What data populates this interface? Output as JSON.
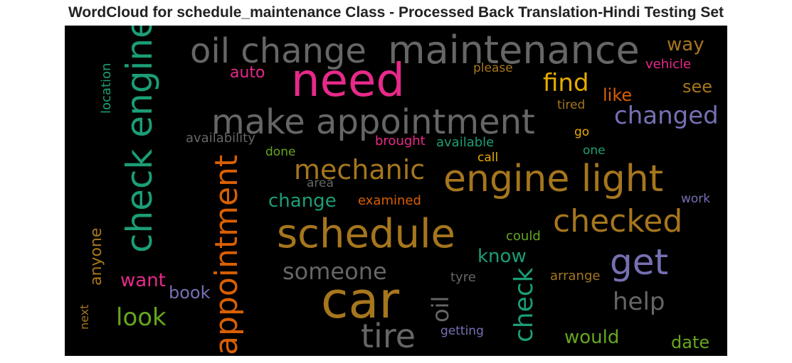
{
  "title": "WordCloud for schedule_maintenance Class - Processed Back Translation-Hindi Testing Set",
  "words": {
    "need": {
      "text": "need",
      "color": "#e7298a"
    },
    "car": {
      "text": "car",
      "color": "#a6761d"
    },
    "schedule": {
      "text": "schedule",
      "color": "#a6761d"
    },
    "engine_light": {
      "text": "engine light",
      "color": "#a6761d"
    },
    "maintenance": {
      "text": "maintenance",
      "color": "#666666"
    },
    "check_engine": {
      "text": "check engine",
      "color": "#1b9e77"
    },
    "make_appointment": {
      "text": "make appointment",
      "color": "#666666"
    },
    "oil_change": {
      "text": "oil change",
      "color": "#666666"
    },
    "appointment": {
      "text": "appointment",
      "color": "#d95f02"
    },
    "get": {
      "text": "get",
      "color": "#7570b3"
    },
    "tire": {
      "text": "tire",
      "color": "#666666"
    },
    "checked": {
      "text": "checked",
      "color": "#a6761d"
    },
    "mechanic": {
      "text": "mechanic",
      "color": "#a6761d"
    },
    "check": {
      "text": "check",
      "color": "#1b9e77"
    },
    "changed": {
      "text": "changed",
      "color": "#7570b3"
    },
    "find": {
      "text": "find",
      "color": "#e6ab02"
    },
    "someone": {
      "text": "someone",
      "color": "#666666"
    },
    "help": {
      "text": "help",
      "color": "#666666"
    },
    "look": {
      "text": "look",
      "color": "#66a61e"
    },
    "oil": {
      "text": "oil",
      "color": "#666666"
    },
    "change": {
      "text": "change",
      "color": "#1b9e77"
    },
    "know": {
      "text": "know",
      "color": "#1b9e77"
    },
    "way": {
      "text": "way",
      "color": "#a6761d"
    },
    "would": {
      "text": "would",
      "color": "#66a61e"
    },
    "want": {
      "text": "want",
      "color": "#e7298a"
    },
    "like": {
      "text": "like",
      "color": "#d95f02"
    },
    "book": {
      "text": "book",
      "color": "#7570b3"
    },
    "see": {
      "text": "see",
      "color": "#a6761d"
    },
    "date": {
      "text": "date",
      "color": "#66a61e"
    },
    "auto": {
      "text": "auto",
      "color": "#e7298a"
    },
    "anyone": {
      "text": "anyone",
      "color": "#a6761d"
    },
    "vehicle": {
      "text": "vehicle",
      "color": "#e7298a"
    },
    "location": {
      "text": "location",
      "color": "#1b9e77"
    },
    "please": {
      "text": "please",
      "color": "#a6761d"
    },
    "tired": {
      "text": "tired",
      "color": "#a6761d"
    },
    "availability": {
      "text": "availability",
      "color": "#666666"
    },
    "brought": {
      "text": "brought",
      "color": "#e7298a"
    },
    "available": {
      "text": "available",
      "color": "#1b9e77"
    },
    "go": {
      "text": "go",
      "color": "#e6ab02"
    },
    "one": {
      "text": "one",
      "color": "#1b9e77"
    },
    "done": {
      "text": "done",
      "color": "#66a61e"
    },
    "call": {
      "text": "call",
      "color": "#e6ab02"
    },
    "area": {
      "text": "area",
      "color": "#666666"
    },
    "examined": {
      "text": "examined",
      "color": "#d95f02"
    },
    "work": {
      "text": "work",
      "color": "#7570b3"
    },
    "could": {
      "text": "could",
      "color": "#66a61e"
    },
    "arrange": {
      "text": "arrange",
      "color": "#a6761d"
    },
    "tyre": {
      "text": "tyre",
      "color": "#666666"
    },
    "getting": {
      "text": "getting",
      "color": "#7570b3"
    },
    "next": {
      "text": "next",
      "color": "#a6761d"
    }
  }
}
